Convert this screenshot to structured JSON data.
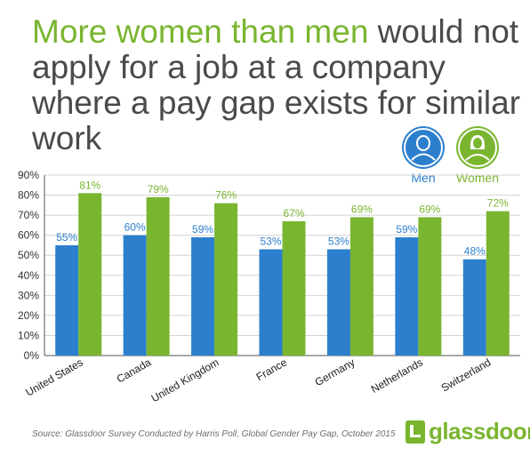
{
  "title": {
    "highlight": "More women than men",
    "rest": " would not apply for a job at a company where a pay gap exists for similar work"
  },
  "legend": [
    {
      "label": "Men",
      "color": "#2c7fcd",
      "icon": "man-icon"
    },
    {
      "label": "Women",
      "color": "#7ab530",
      "icon": "woman-icon"
    }
  ],
  "footer": {
    "source": "Source: Glassdoor Survey Conducted by Harris Poll, Global Gender Pay Gap, October 2015",
    "brand": "glassdoor",
    "brand_mark": "•"
  },
  "chart_data": {
    "type": "bar",
    "categories": [
      "United States",
      "Canada",
      "United Kingdom",
      "France",
      "Germany",
      "Netherlands",
      "Switzerland"
    ],
    "series": [
      {
        "name": "Men",
        "values": [
          55,
          60,
          59,
          53,
          53,
          59,
          48
        ],
        "labels": [
          "55%",
          "60%",
          "59%",
          "53%",
          "53%",
          "59%",
          "48%"
        ],
        "color": "#2c7fcd"
      },
      {
        "name": "Women",
        "values": [
          81,
          79,
          76,
          67,
          69,
          69,
          72
        ],
        "labels": [
          "81%",
          "79%",
          "76%",
          "67%",
          "69%",
          "69%",
          "72%"
        ],
        "color": "#7ab530"
      }
    ],
    "ylim": [
      0,
      90
    ],
    "yticks": [
      "0%",
      "10%",
      "20%",
      "30%",
      "40%",
      "50%",
      "60%",
      "70%",
      "80%",
      "90%"
    ],
    "grid": true,
    "legend": "top-right"
  }
}
